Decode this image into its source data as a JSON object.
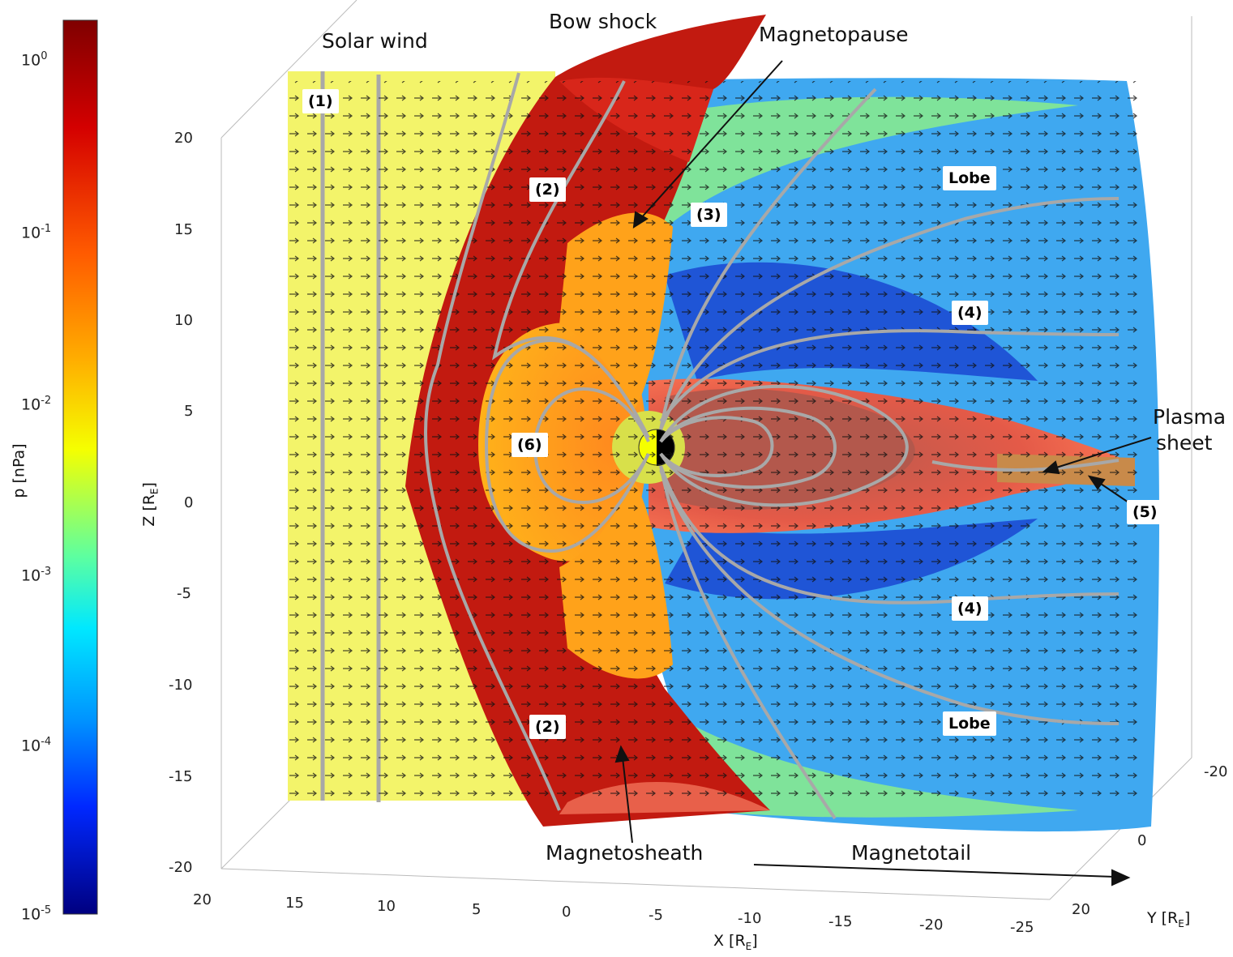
{
  "colorbar": {
    "label": "p [nPa]",
    "ticks": [
      {
        "base": "10",
        "exp": "0"
      },
      {
        "base": "10",
        "exp": "-1"
      },
      {
        "base": "10",
        "exp": "-2"
      },
      {
        "base": "10",
        "exp": "-3"
      },
      {
        "base": "10",
        "exp": "-4"
      },
      {
        "base": "10",
        "exp": "-5"
      }
    ]
  },
  "axes": {
    "z_label": "Z [R",
    "z_sub": "E",
    "z_ticks": [
      "20",
      "15",
      "10",
      "5",
      "0",
      "-5",
      "-10",
      "-15",
      "-20"
    ],
    "x_label": "X [R",
    "x_sub": "E",
    "x_ticks": [
      "20",
      "15",
      "10",
      "5",
      "0",
      "-5",
      "-10",
      "-15",
      "-20",
      "-25"
    ],
    "y_label": "Y [R",
    "y_sub": "E",
    "y_ticks": [
      "-20",
      "0",
      "20"
    ]
  },
  "labels": {
    "solar_wind": "Solar wind",
    "bow_shock": "Bow shock",
    "magnetopause": "Magnetopause",
    "magnetosheath": "Magnetosheath",
    "magnetotail": "Magnetotail",
    "plasma_sheet_1": "Plasma",
    "plasma_sheet_2": "sheet",
    "lobe_top": "Lobe",
    "lobe_bottom": "Lobe",
    "region_1": "(1)",
    "region_2a": "(2)",
    "region_2b": "(2)",
    "region_3": "(3)",
    "region_4a": "(4)",
    "region_4b": "(4)",
    "region_5": "(5)",
    "region_6": "(6)"
  },
  "colors": {
    "solar_wind": "#f3f46a",
    "sheath": "#c21a10",
    "lobe": "#3fa8f0",
    "lobe_dark": "#1f55d6",
    "plasma_sheet": "#e8604a",
    "field_lines": "#a8a8a8"
  }
}
